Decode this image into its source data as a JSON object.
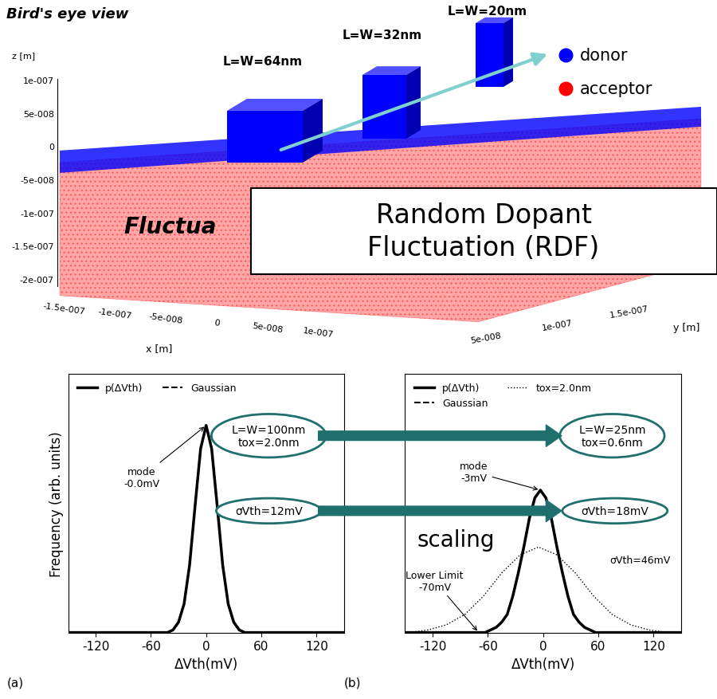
{
  "diagram": {
    "title": "Bird's eye view",
    "axis_labels": {
      "x": "x [m]",
      "y": "y [m]",
      "z": "z [m]"
    },
    "z_tick_labels": [
      "1e-007",
      "5e-008",
      "0",
      "-5e-008",
      "-1e-007",
      "-1.5e-007",
      "-2e-007"
    ],
    "x_tick_labels": [
      "-1.5e-007",
      "-1e-007",
      "-5e-008",
      "0",
      "5e-008",
      "1e-007"
    ],
    "y_tick_labels": [
      "5e-008",
      "1e-007",
      "1.5e-007"
    ],
    "devices": [
      "L=W=64nm",
      "L=W=32nm",
      "L=W=20nm"
    ],
    "species": [
      {
        "name": "donor",
        "color": "#0000ff"
      },
      {
        "name": "acceptor",
        "color": "#ff0000"
      }
    ],
    "banner": "Random Dopant\nFluctuation (RDF)",
    "hidden_text": "Fluctua"
  },
  "arrow_label": "scaling",
  "chart_data": [
    {
      "type": "line",
      "panel": "(a)",
      "xlabel": "ΔVth(mV)",
      "ylabel": "Frequency (arb. units)",
      "xlim": [
        -150,
        150
      ],
      "xticks": [
        -120,
        -60,
        0,
        60,
        120
      ],
      "ylim": [
        0,
        1
      ],
      "yticks": [],
      "tick_labels": "x",
      "legend": "upper left",
      "series": [
        {
          "name": "p(ΔVth)",
          "color": "#000000",
          "line_style": "solid",
          "x": [
            -150,
            -42,
            -36,
            -30,
            -24,
            -18,
            -12,
            -6,
            0,
            6,
            12,
            18,
            24,
            30,
            36,
            42,
            150
          ],
          "values": [
            0,
            0,
            0.01,
            0.04,
            0.11,
            0.26,
            0.49,
            0.71,
            0.8,
            0.71,
            0.49,
            0.26,
            0.11,
            0.04,
            0.01,
            0,
            0
          ]
        },
        {
          "name": "Gaussian",
          "color": "#000000",
          "line_style": "dashed",
          "x": [
            -150,
            -42,
            -36,
            -30,
            -24,
            -18,
            -12,
            -6,
            0,
            6,
            12,
            18,
            24,
            30,
            36,
            42,
            150
          ],
          "values": [
            0,
            0,
            0.01,
            0.04,
            0.11,
            0.26,
            0.49,
            0.71,
            0.8,
            0.71,
            0.49,
            0.26,
            0.11,
            0.04,
            0.01,
            0,
            0
          ]
        }
      ],
      "annotations": [
        "mode\n-0.0mV"
      ],
      "boxes": [
        "L=W=100nm\ntox=2.0nm",
        "σVth=12mV"
      ]
    },
    {
      "type": "line",
      "panel": "(b)",
      "xlabel": "ΔVth(mV)",
      "xlim": [
        -150,
        150
      ],
      "xticks": [
        -120,
        -60,
        0,
        60,
        120
      ],
      "ylim": [
        0,
        1
      ],
      "yticks": [],
      "tick_labels": "x",
      "legend": "upper left",
      "series": [
        {
          "name": "p(ΔVth)",
          "color": "#000000",
          "line_style": "solid",
          "x": [
            -150,
            -70,
            -63,
            -57,
            -51,
            -45,
            -39,
            -33,
            -27,
            -21,
            -15,
            -9,
            -3,
            3,
            9,
            15,
            21,
            27,
            33,
            39,
            45,
            51,
            57,
            63,
            150
          ],
          "values": [
            0,
            0,
            0,
            0.01,
            0.02,
            0.04,
            0.07,
            0.14,
            0.23,
            0.33,
            0.44,
            0.52,
            0.55,
            0.52,
            0.44,
            0.33,
            0.23,
            0.14,
            0.07,
            0.04,
            0.02,
            0.01,
            0,
            0,
            0
          ]
        },
        {
          "name": "Gaussian",
          "color": "#000000",
          "line_style": "dashed",
          "x": [
            -150,
            -63,
            -57,
            -51,
            -45,
            -39,
            -33,
            -27,
            -21,
            -15,
            -9,
            -3,
            3,
            9,
            15,
            21,
            27,
            33,
            39,
            45,
            51,
            57,
            63,
            150
          ],
          "values": [
            0,
            0,
            0.01,
            0.02,
            0.04,
            0.07,
            0.14,
            0.23,
            0.33,
            0.44,
            0.52,
            0.55,
            0.52,
            0.44,
            0.33,
            0.23,
            0.14,
            0.07,
            0.04,
            0.02,
            0.01,
            0,
            0,
            0
          ]
        },
        {
          "name": "tox=2.0nm",
          "color": "#000000",
          "line_style": "dotted",
          "x": [
            -145,
            -125,
            -105,
            -85,
            -65,
            -45,
            -25,
            -5,
            15,
            35,
            55,
            75,
            95,
            115,
            135
          ],
          "values": [
            0,
            0.01,
            0.03,
            0.07,
            0.14,
            0.23,
            0.3,
            0.33,
            0.3,
            0.23,
            0.14,
            0.07,
            0.03,
            0.01,
            0
          ]
        }
      ],
      "annotations": [
        "mode\n-3mV",
        "Lower Limit\n-70mV",
        "σVth=46mV"
      ],
      "boxes": [
        "L=W=25nm\ntox=0.6nm",
        "σVth=18mV"
      ]
    }
  ]
}
